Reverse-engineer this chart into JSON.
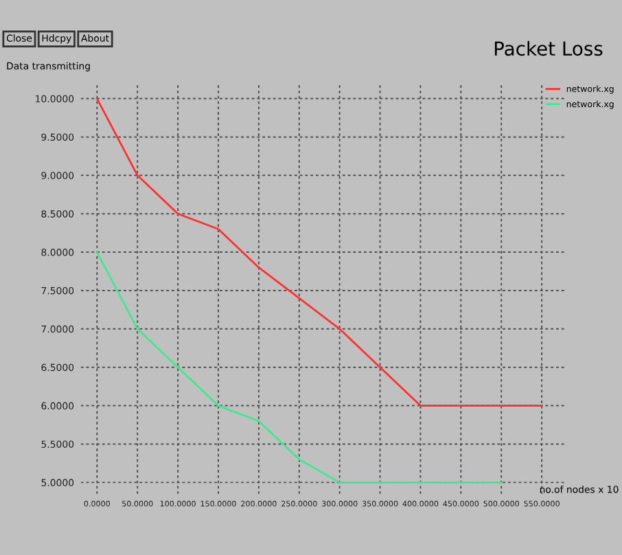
{
  "chart_data": {
    "type": "line",
    "title": "Packet Loss",
    "ylabel": "Data transmitting",
    "xlabel": "no.of nodes x 10",
    "annotations": [
      "Close",
      "Hdcpy",
      "About"
    ],
    "series": [
      {
        "name": "network.xg",
        "color": "#ff3030",
        "x": [
          0,
          50,
          100,
          150,
          200,
          250,
          300,
          350,
          400,
          450,
          500,
          550
        ],
        "values": [
          10,
          9,
          8.5,
          8.3,
          7.8,
          7.4,
          7,
          6.5,
          6,
          6,
          6,
          6
        ]
      },
      {
        "name": "network.xg",
        "color": "#40e890",
        "x": [
          0,
          50,
          100,
          150,
          200,
          250,
          300,
          350,
          400,
          450,
          500
        ],
        "values": [
          8,
          7,
          6.5,
          6,
          5.8,
          5.3,
          5,
          5,
          5,
          5,
          5
        ]
      }
    ],
    "xlim": [
      -20,
      580
    ],
    "ylim": [
      4.85,
      10.2
    ],
    "xticks": [
      {
        "value": 0,
        "label": "0.0000"
      },
      {
        "value": 50,
        "label": "50.0000"
      },
      {
        "value": 100,
        "label": "100.0000"
      },
      {
        "value": 150,
        "label": "150.0000"
      },
      {
        "value": 200,
        "label": "200.0000"
      },
      {
        "value": 250,
        "label": "250.0000"
      },
      {
        "value": 300,
        "label": "300.0000"
      },
      {
        "value": 350,
        "label": "350.0000"
      },
      {
        "value": 400,
        "label": "400.0000"
      },
      {
        "value": 450,
        "label": "450.0000"
      },
      {
        "value": 500,
        "label": "500.0000"
      },
      {
        "value": 550,
        "label": "550.0000"
      }
    ],
    "yticks": [
      {
        "value": 5,
        "label": "5.0000"
      },
      {
        "value": 5.5,
        "label": "5.5000"
      },
      {
        "value": 6,
        "label": "6.0000"
      },
      {
        "value": 6.5,
        "label": "6.5000"
      },
      {
        "value": 7,
        "label": "7.0000"
      },
      {
        "value": 7.5,
        "label": "7.5000"
      },
      {
        "value": 8,
        "label": "8.0000"
      },
      {
        "value": 8.5,
        "label": "8.5000"
      },
      {
        "value": 9,
        "label": "9.0000"
      },
      {
        "value": 9.5,
        "label": "9.5000"
      },
      {
        "value": 10,
        "label": "10.0000"
      }
    ],
    "grid": true,
    "legend": "top right",
    "marker": "none",
    "line_style": "solid"
  }
}
